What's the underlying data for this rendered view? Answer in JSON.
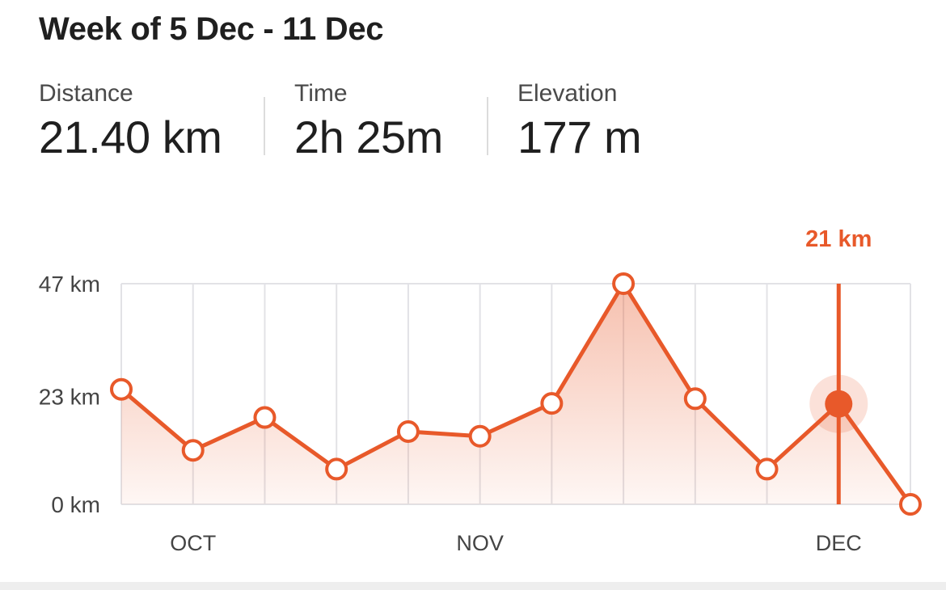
{
  "header": {
    "title": "Week of 5 Dec - 11 Dec"
  },
  "stats": [
    {
      "label": "Distance",
      "value": "21.40 km"
    },
    {
      "label": "Time",
      "value": "2h 25m"
    },
    {
      "label": "Elevation",
      "value": "177 m"
    }
  ],
  "colors": {
    "accent": "#e8592a",
    "grid": "#e2e2e6",
    "text": "#1f1f1f",
    "muted": "#4a4a4a"
  },
  "chart_data": {
    "type": "area",
    "x": [
      0,
      1,
      2,
      3,
      4,
      5,
      6,
      7,
      8,
      9,
      10,
      11
    ],
    "values": [
      24.5,
      11.5,
      18.5,
      7.5,
      15.5,
      14.5,
      21.5,
      47,
      22.5,
      7.5,
      21.4,
      0
    ],
    "x_tick_labels": [
      {
        "at": 1,
        "label": "OCT"
      },
      {
        "at": 5,
        "label": "NOV"
      },
      {
        "at": 10,
        "label": "DEC"
      }
    ],
    "y_ticks": [
      {
        "value": 0,
        "label": "0 km"
      },
      {
        "value": 23,
        "label": "23 km"
      },
      {
        "value": 47,
        "label": "47 km"
      }
    ],
    "ylim": [
      0,
      47
    ],
    "selected_index": 10,
    "selected_label": "21 km",
    "grid": true
  }
}
